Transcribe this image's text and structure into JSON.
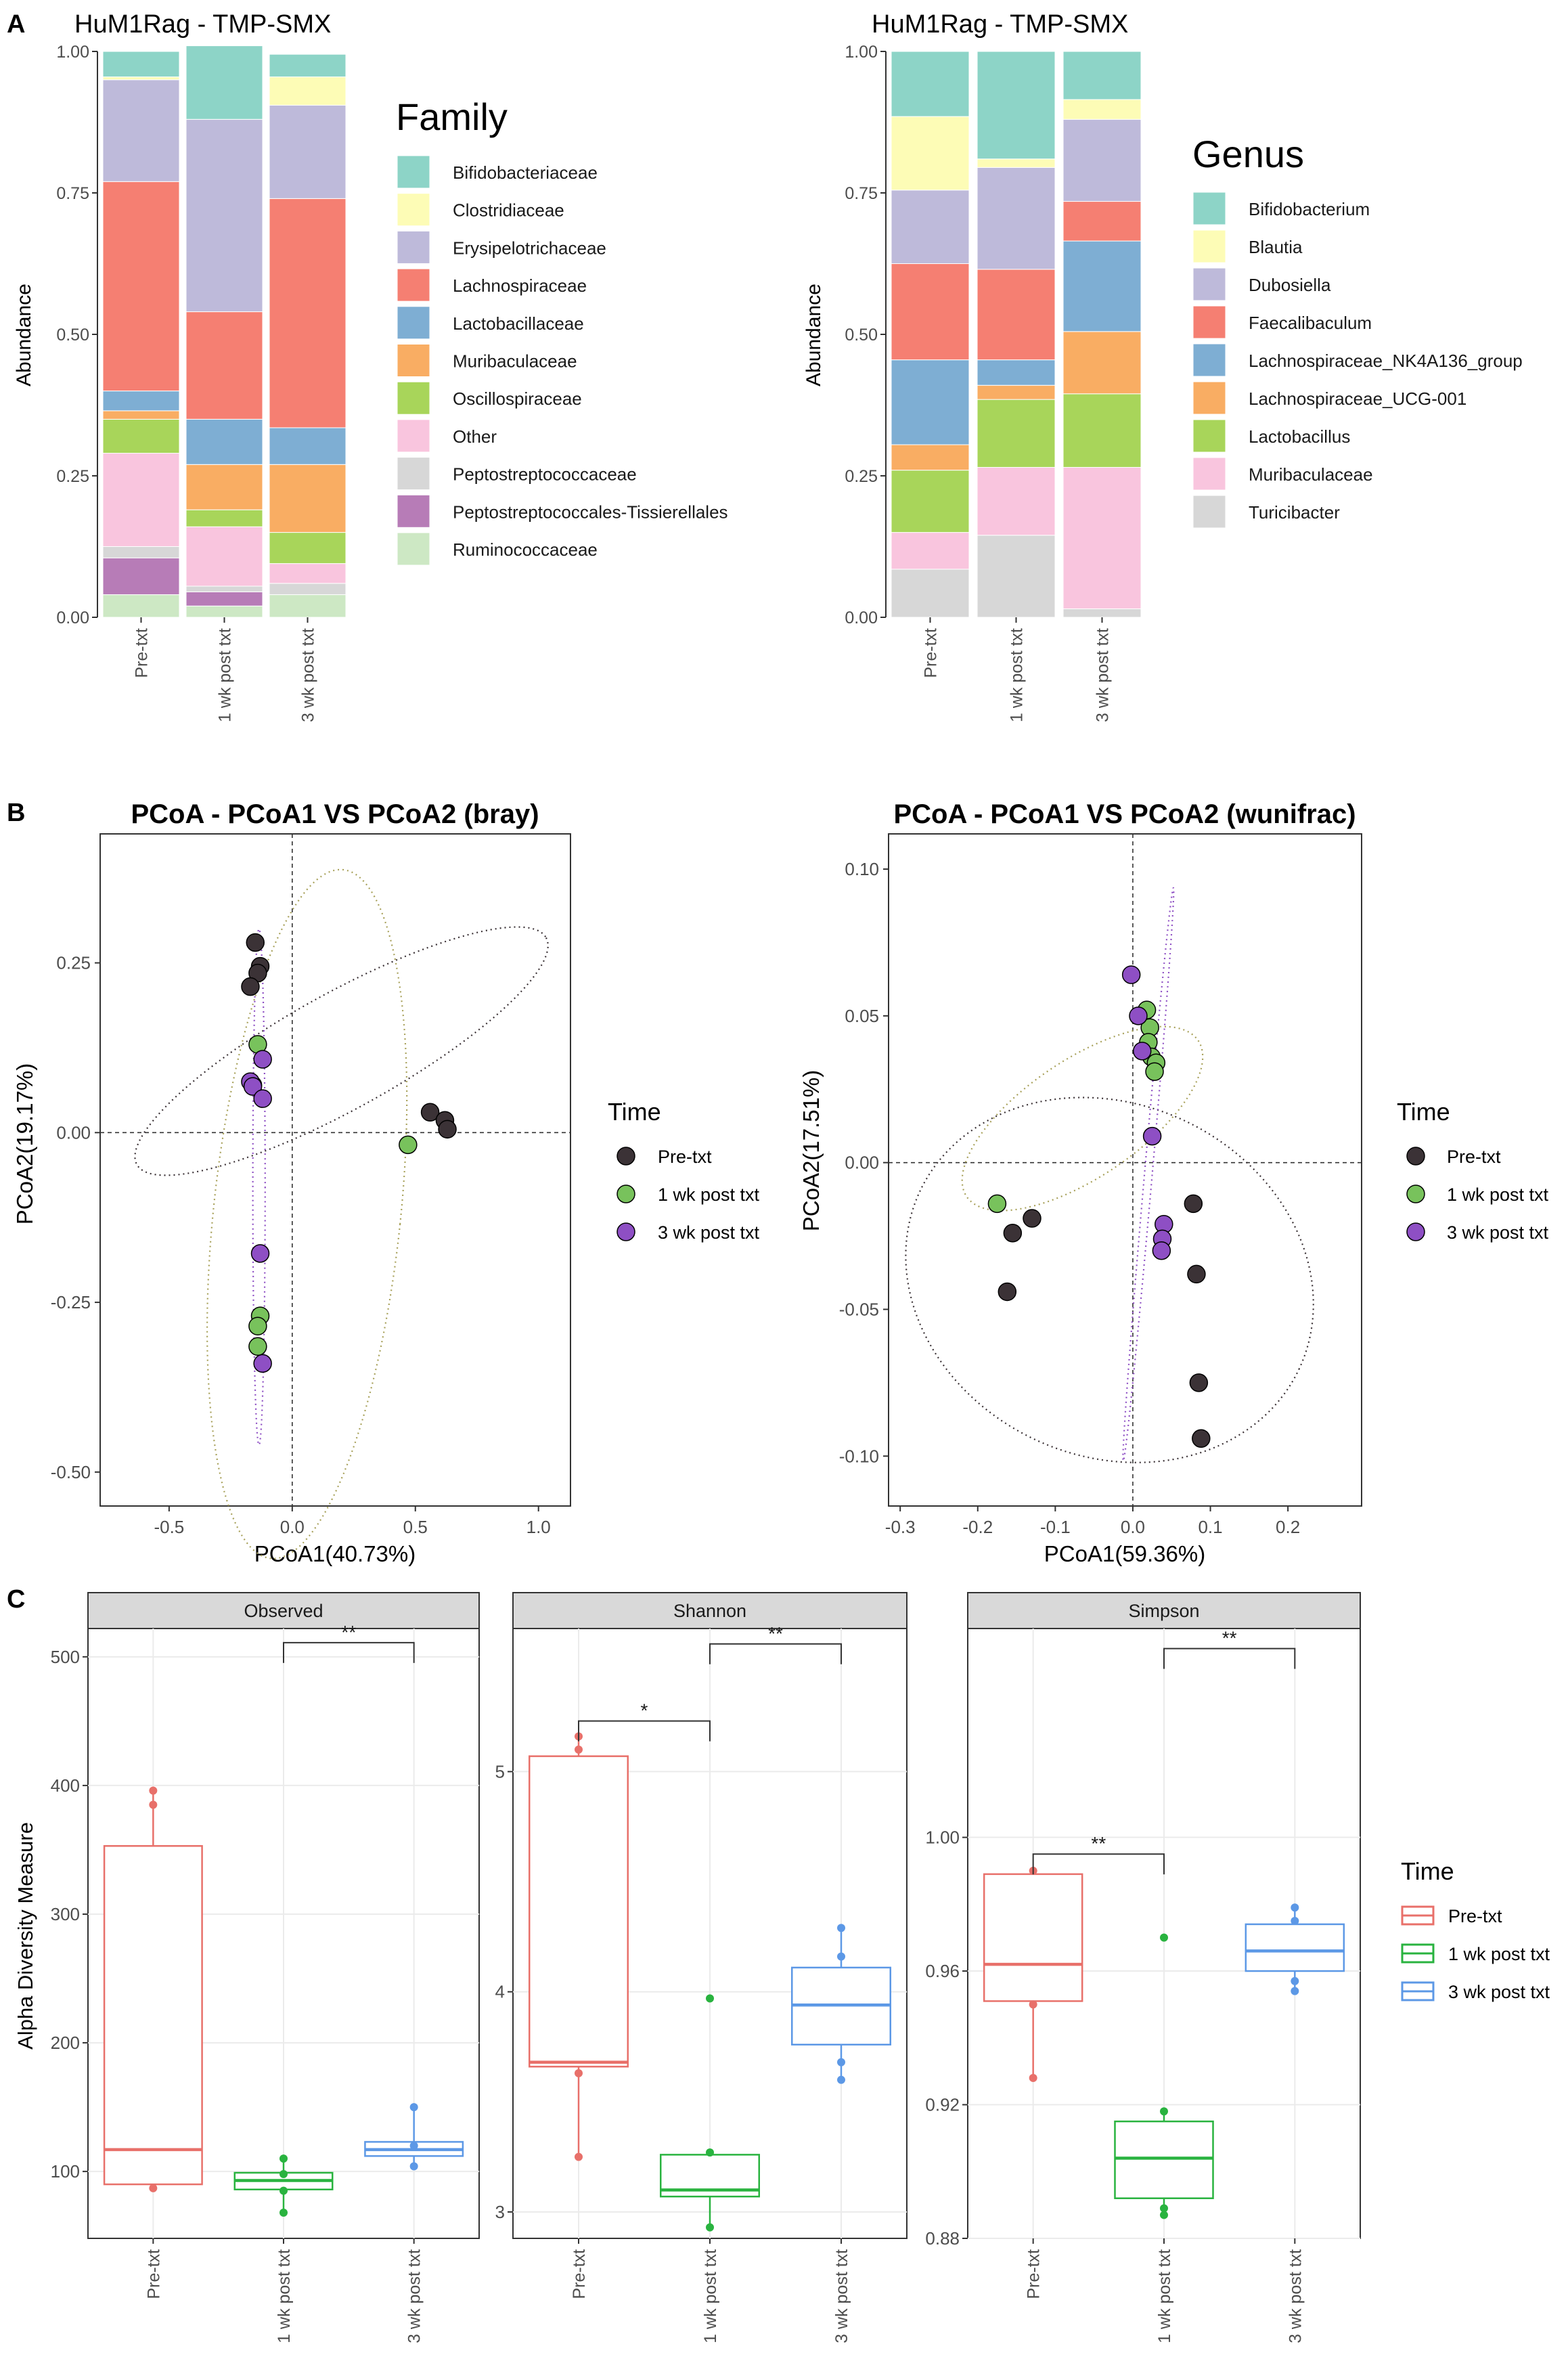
{
  "panel_labels": {
    "a": "A",
    "b": "B",
    "c": "C"
  },
  "common": {
    "groups": [
      "Pre-txt",
      "1 wk post txt",
      "3 wk post txt"
    ],
    "group_colors": [
      "#E8706A",
      "#29B33F",
      "#5C98E6"
    ],
    "scatter_colors": [
      "#3B3236",
      "#78C25C",
      "#8E4FC4"
    ],
    "legend_title": "Time"
  },
  "chart_data": [
    {
      "id": "family",
      "type": "bar",
      "stacked": true,
      "title": "HuM1Rag - TMP-SMX",
      "ylabel": "Abundance",
      "ylim": [
        0,
        1
      ],
      "yticks": [
        "0.00",
        "0.25",
        "0.50",
        "0.75",
        "1.00"
      ],
      "categories": [
        "Pre-txt",
        "1 wk post txt",
        "3 wk post txt"
      ],
      "legend_title": "Family",
      "series": [
        {
          "name": "Ruminococcaceae",
          "color": "#CDE8C4",
          "values": [
            0.04,
            0.02,
            0.04
          ]
        },
        {
          "name": "Peptostreptococcales-Tissierellales",
          "color": "#B77CB7",
          "values": [
            0.065,
            0.025,
            0.0
          ]
        },
        {
          "name": "Peptostreptococcaceae",
          "color": "#D7D7D7",
          "values": [
            0.02,
            0.01,
            0.02
          ]
        },
        {
          "name": "Other",
          "color": "#F9C5DE",
          "values": [
            0.165,
            0.105,
            0.035
          ]
        },
        {
          "name": "Oscillospiraceae",
          "color": "#A8D55A",
          "values": [
            0.06,
            0.03,
            0.055
          ]
        },
        {
          "name": "Muribaculaceae",
          "color": "#F9AD63",
          "values": [
            0.015,
            0.08,
            0.12
          ]
        },
        {
          "name": "Lactobacillaceae",
          "color": "#7EAED3",
          "values": [
            0.035,
            0.08,
            0.065
          ]
        },
        {
          "name": "Lachnospiraceae",
          "color": "#F57F72",
          "values": [
            0.37,
            0.19,
            0.405
          ]
        },
        {
          "name": "Erysipelotrichaceae",
          "color": "#BEBADA",
          "values": [
            0.18,
            0.34,
            0.165
          ]
        },
        {
          "name": "Clostridiaceae",
          "color": "#FDFCB6",
          "values": [
            0.005,
            0.0,
            0.05
          ]
        },
        {
          "name": "Bifidobacteriaceae",
          "color": "#8DD4C7",
          "values": [
            0.045,
            0.13,
            0.04
          ]
        }
      ]
    },
    {
      "id": "genus",
      "type": "bar",
      "stacked": true,
      "title": "HuM1Rag - TMP-SMX",
      "ylabel": "Abundance",
      "ylim": [
        0,
        1
      ],
      "yticks": [
        "0.00",
        "0.25",
        "0.50",
        "0.75",
        "1.00"
      ],
      "categories": [
        "Pre-txt",
        "1 wk post txt",
        "3 wk post txt"
      ],
      "legend_title": "Genus",
      "series": [
        {
          "name": "Turicibacter",
          "color": "#D7D7D7",
          "values": [
            0.085,
            0.145,
            0.015
          ]
        },
        {
          "name": "Muribaculaceae",
          "color": "#F9C5DE",
          "values": [
            0.065,
            0.12,
            0.25
          ]
        },
        {
          "name": "Lactobacillus",
          "color": "#A8D55A",
          "values": [
            0.11,
            0.12,
            0.13
          ]
        },
        {
          "name": "Lachnospiraceae_UCG-001",
          "color": "#F9AD63",
          "values": [
            0.045,
            0.025,
            0.11
          ]
        },
        {
          "name": "Lachnospiraceae_NK4A136_group",
          "color": "#7EAED3",
          "values": [
            0.15,
            0.045,
            0.16
          ]
        },
        {
          "name": "Faecalibaculum",
          "color": "#F57F72",
          "values": [
            0.17,
            0.16,
            0.07
          ]
        },
        {
          "name": "Dubosiella",
          "color": "#BEBADA",
          "values": [
            0.13,
            0.18,
            0.145
          ]
        },
        {
          "name": "Blautia",
          "color": "#FDFCB6",
          "values": [
            0.13,
            0.015,
            0.035
          ]
        },
        {
          "name": "Bifidobacterium",
          "color": "#8DD4C7",
          "values": [
            0.115,
            0.19,
            0.085
          ]
        }
      ]
    },
    {
      "id": "pcoa_bray",
      "type": "scatter",
      "title": "PCoA - PCoA1 VS PCoA2 (bray)",
      "xlabel": "PCoA1(40.73%)",
      "ylabel": "PCoA2(19.17%)",
      "xlim": [
        -0.78,
        1.13
      ],
      "ylim": [
        -0.55,
        0.44
      ],
      "xticks": [
        "-0.5",
        "0.0",
        "0.5",
        "1.0"
      ],
      "xtick_values": [
        -0.5,
        0,
        0.5,
        1.0
      ],
      "yticks": [
        "-0.50",
        "-0.25",
        "0.00",
        "0.25"
      ],
      "ytick_values": [
        -0.5,
        -0.25,
        0,
        0.25
      ],
      "series": [
        {
          "name": "Pre-txt",
          "points": [
            [
              -0.15,
              0.28
            ],
            [
              -0.13,
              0.245
            ],
            [
              -0.14,
              0.235
            ],
            [
              -0.17,
              0.215
            ],
            [
              0.56,
              0.03
            ],
            [
              0.62,
              0.018
            ],
            [
              0.63,
              0.005
            ]
          ]
        },
        {
          "name": "1 wk post txt",
          "points": [
            [
              -0.14,
              0.13
            ],
            [
              -0.16,
              0.07
            ],
            [
              0.47,
              -0.018
            ],
            [
              -0.13,
              -0.27
            ],
            [
              -0.14,
              -0.285
            ],
            [
              -0.14,
              -0.315
            ]
          ]
        },
        {
          "name": "3 wk post txt",
          "points": [
            [
              -0.12,
              0.108
            ],
            [
              -0.17,
              0.075
            ],
            [
              -0.16,
              0.068
            ],
            [
              -0.12,
              0.05
            ],
            [
              -0.13,
              -0.178
            ],
            [
              -0.12,
              -0.34
            ]
          ]
        }
      ],
      "ellipses": [
        {
          "series": "Pre-txt",
          "cx": 0.2,
          "cy": 0.12,
          "rx": 0.95,
          "ry": 0.085,
          "angle_deg": 29
        },
        {
          "series": "1 wk post txt",
          "cx": 0.06,
          "cy": -0.12,
          "rx": 0.38,
          "ry": 0.51,
          "angle_deg": -6
        },
        {
          "series": "3 wk post txt",
          "cx": -0.135,
          "cy": -0.08,
          "rx": 0.025,
          "ry": 0.38,
          "angle_deg": 0
        }
      ]
    },
    {
      "id": "pcoa_wunifrac",
      "type": "scatter",
      "title": "PCoA - PCoA1 VS PCoA2 (wunifrac)",
      "xlabel": "PCoA1(59.36%)",
      "ylabel": "PCoA2(17.51%)",
      "xlim": [
        -0.315,
        0.295
      ],
      "ylim": [
        -0.117,
        0.112
      ],
      "xticks": [
        "-0.3",
        "-0.2",
        "-0.1",
        "0.0",
        "0.1",
        "0.2"
      ],
      "xtick_values": [
        -0.3,
        -0.2,
        -0.1,
        0,
        0.1,
        0.2
      ],
      "yticks": [
        "-0.10",
        "-0.05",
        "0.00",
        "0.05",
        "0.10"
      ],
      "ytick_values": [
        -0.1,
        -0.05,
        0,
        0.05,
        0.1
      ],
      "series": [
        {
          "name": "Pre-txt",
          "points": [
            [
              -0.13,
              -0.019
            ],
            [
              -0.155,
              -0.024
            ],
            [
              -0.162,
              -0.044
            ],
            [
              0.078,
              -0.014
            ],
            [
              0.082,
              -0.038
            ],
            [
              0.085,
              -0.075
            ],
            [
              0.088,
              -0.094
            ]
          ]
        },
        {
          "name": "1 wk post txt",
          "points": [
            [
              -0.175,
              -0.014
            ],
            [
              0.018,
              0.052
            ],
            [
              0.022,
              0.046
            ],
            [
              0.02,
              0.041
            ],
            [
              0.024,
              0.036
            ],
            [
              0.03,
              0.034
            ],
            [
              0.028,
              0.031
            ]
          ]
        },
        {
          "name": "3 wk post txt",
          "points": [
            [
              -0.002,
              0.064
            ],
            [
              0.007,
              0.05
            ],
            [
              0.012,
              0.038
            ],
            [
              0.025,
              0.009
            ],
            [
              0.04,
              -0.021
            ],
            [
              0.038,
              -0.026
            ],
            [
              0.037,
              -0.03
            ]
          ]
        }
      ],
      "ellipses": [
        {
          "series": "Pre-txt",
          "cx": -0.03,
          "cy": -0.04,
          "rx": 0.27,
          "ry": 0.06,
          "angle_deg": -25
        },
        {
          "series": "1 wk post txt",
          "cx": -0.065,
          "cy": 0.015,
          "rx": 0.18,
          "ry": 0.02,
          "angle_deg": 34
        },
        {
          "series": "3 wk post txt",
          "cx": 0.02,
          "cy": -0.004,
          "rx": 0.005,
          "ry": 0.098,
          "angle_deg": -5
        }
      ]
    },
    {
      "id": "observed",
      "type": "box",
      "strip_label": "Observed",
      "ylabel": "Alpha Diversity Measure",
      "ylim": [
        48,
        522
      ],
      "yticks": [
        "100",
        "200",
        "300",
        "400",
        "500"
      ],
      "ytick_values": [
        100,
        200,
        300,
        400,
        500
      ],
      "categories": [
        "Pre-txt",
        "1 wk post txt",
        "3 wk post txt"
      ],
      "boxes": [
        {
          "q1": 90,
          "median": 117,
          "q3": 353,
          "whisker_low": 87,
          "whisker_high": 395,
          "points": [
            87,
            385,
            396
          ]
        },
        {
          "q1": 86,
          "median": 93,
          "q3": 99,
          "whisker_low": 68,
          "whisker_high": 110,
          "points": [
            68,
            85,
            98,
            110
          ]
        },
        {
          "q1": 112,
          "median": 117,
          "q3": 123,
          "whisker_low": 104,
          "whisker_high": 150,
          "points": [
            104,
            120,
            150
          ]
        }
      ],
      "significance": [
        {
          "from": 1,
          "to": 2,
          "label": "**",
          "y": 511
        }
      ]
    },
    {
      "id": "shannon",
      "type": "box",
      "strip_label": "Shannon",
      "ylim": [
        2.88,
        5.65
      ],
      "yticks": [
        "3",
        "4",
        "5"
      ],
      "ytick_values": [
        3,
        4,
        5
      ],
      "categories": [
        "Pre-txt",
        "1 wk post txt",
        "3 wk post txt"
      ],
      "boxes": [
        {
          "q1": 3.66,
          "median": 3.68,
          "q3": 5.07,
          "whisker_low": 3.25,
          "whisker_high": 5.16,
          "points": [
            3.25,
            3.63,
            5.1,
            5.16
          ]
        },
        {
          "q1": 3.07,
          "median": 3.1,
          "q3": 3.26,
          "whisker_low": 2.93,
          "whisker_high": 3.27,
          "points": [
            2.93,
            3.27,
            3.97
          ]
        },
        {
          "q1": 3.76,
          "median": 3.94,
          "q3": 4.11,
          "whisker_low": 3.6,
          "whisker_high": 4.29,
          "points": [
            3.6,
            3.68,
            4.16,
            4.29
          ]
        }
      ],
      "significance": [
        {
          "from": 0,
          "to": 1,
          "label": "*",
          "y": 5.23
        },
        {
          "from": 1,
          "to": 2,
          "label": "**",
          "y": 5.58
        }
      ]
    },
    {
      "id": "simpson",
      "type": "box",
      "strip_label": "Simpson",
      "ylim": [
        0.88,
        1.0625
      ],
      "yticks": [
        "0.88",
        "0.92",
        "0.96",
        "1.00"
      ],
      "ytick_values": [
        0.88,
        0.92,
        0.96,
        1.0
      ],
      "categories": [
        "Pre-txt",
        "1 wk post txt",
        "3 wk post txt"
      ],
      "boxes": [
        {
          "q1": 0.951,
          "median": 0.962,
          "q3": 0.989,
          "whisker_low": 0.928,
          "whisker_high": 0.99,
          "points": [
            0.928,
            0.95,
            0.99
          ]
        },
        {
          "q1": 0.892,
          "median": 0.904,
          "q3": 0.915,
          "whisker_low": 0.887,
          "whisker_high": 0.918,
          "points": [
            0.887,
            0.889,
            0.918,
            0.97
          ]
        },
        {
          "q1": 0.96,
          "median": 0.966,
          "q3": 0.974,
          "whisker_low": 0.954,
          "whisker_high": 0.979,
          "points": [
            0.954,
            0.957,
            0.975,
            0.979
          ]
        }
      ],
      "significance": [
        {
          "from": 0,
          "to": 1,
          "label": "**",
          "y": 0.995
        },
        {
          "from": 1,
          "to": 2,
          "label": "**",
          "y": 1.0565
        }
      ]
    }
  ]
}
